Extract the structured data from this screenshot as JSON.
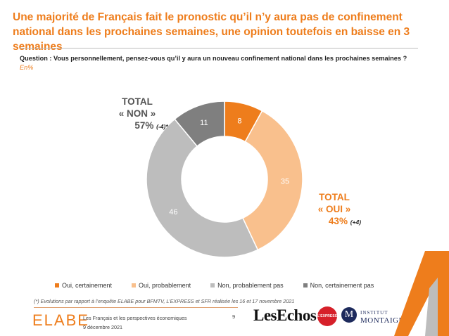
{
  "title": "Une majorité de Français fait le pronostic qu’il n’y aura pas de confinement national dans les prochaines semaines, une opinion toutefois en baisse en 3 semaines",
  "question": "Question : Vous personnellement, pensez-vous qu’il y aura un nouveau confinement national dans les prochaines semaines ?",
  "unit": "En%",
  "total_non": {
    "label": "TOTAL",
    "name": "« NON »",
    "value": "57%",
    "delta": "(-4)*"
  },
  "total_oui": {
    "label": "TOTAL",
    "name": "« OUI »",
    "value": "43%",
    "delta": "(+4)"
  },
  "chart_data": {
    "type": "pie",
    "variant": "donut",
    "unit": "%",
    "slices": [
      {
        "label": "Oui, certainement",
        "value": 8,
        "color": "#ee7d1c"
      },
      {
        "label": "Oui, probablement",
        "value": 35,
        "color": "#f9c08d"
      },
      {
        "label": "Non, probablement pas",
        "value": 46,
        "color": "#bdbdbd"
      },
      {
        "label": "Non, certainement pas",
        "value": 11,
        "color": "#7f7f7f"
      }
    ],
    "legend_position": "bottom"
  },
  "footnote": "(*) Evolutions par rapport à l’enquête ELABE pour BFMTV, L’EXPRESS et SFR réalisée les 16 et 17 novembre 2021",
  "footer": {
    "brand": "ELABE",
    "line1": "Les Français et les perspectives économiques",
    "line2": "9 décembre 2021",
    "page": "9",
    "partner1": "LesEchos",
    "partner2": "L'EXPRESS",
    "partner3_initial": "M",
    "partner3_line1": "INSTITUT",
    "partner3_line2": "MONTAIGNE"
  },
  "colors": {
    "accent": "#ee7d1c",
    "deco_orange": "#ee7d1c",
    "deco_grey": "#9e9e9e"
  }
}
